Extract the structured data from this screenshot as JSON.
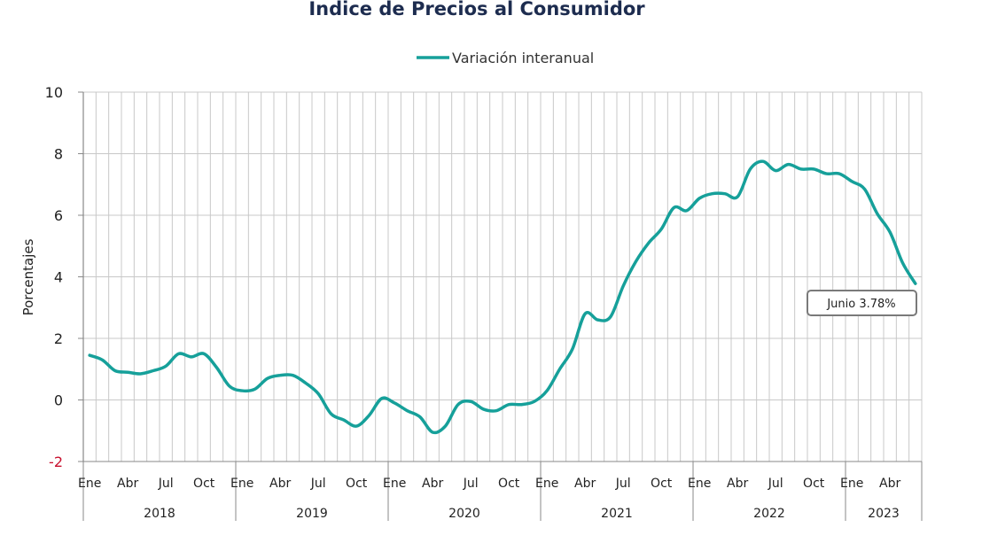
{
  "chart_data": {
    "type": "line",
    "title": "Índice de Precios al Consumidor",
    "ylabel": "Porcentajes",
    "ylim": [
      -2,
      10
    ],
    "yticks": [
      "-2",
      "0",
      "2",
      "4",
      "6",
      "8",
      "10"
    ],
    "grid": true,
    "legend": "top-center",
    "month_labels": [
      "Ene",
      "Abr",
      "Jul",
      "Oct"
    ],
    "years": [
      "2018",
      "2019",
      "2020",
      "2021",
      "2022",
      "2023"
    ],
    "x_start": "2018-01",
    "x_end": "2023-06",
    "series": [
      {
        "name": "Variación interanual",
        "color": "#16a09a",
        "values": [
          1.45,
          1.3,
          0.95,
          0.9,
          0.85,
          0.95,
          1.1,
          1.5,
          1.4,
          1.5,
          1.05,
          0.45,
          0.3,
          0.35,
          0.7,
          0.8,
          0.8,
          0.55,
          0.2,
          -0.45,
          -0.65,
          -0.85,
          -0.5,
          0.05,
          -0.1,
          -0.35,
          -0.55,
          -1.05,
          -0.85,
          -0.15,
          -0.05,
          -0.3,
          -0.35,
          -0.15,
          -0.15,
          -0.05,
          0.3,
          1.0,
          1.65,
          2.8,
          2.6,
          2.7,
          3.7,
          4.5,
          5.1,
          5.55,
          6.25,
          6.15,
          6.55,
          6.7,
          6.7,
          6.6,
          7.5,
          7.75,
          7.45,
          7.65,
          7.5,
          7.5,
          7.35,
          7.35,
          7.1,
          6.85,
          6.05,
          5.45,
          4.45,
          3.78
        ]
      }
    ],
    "annotation": {
      "label": "Junio 3.78%",
      "x": "2023-06",
      "y": 3.78
    }
  }
}
